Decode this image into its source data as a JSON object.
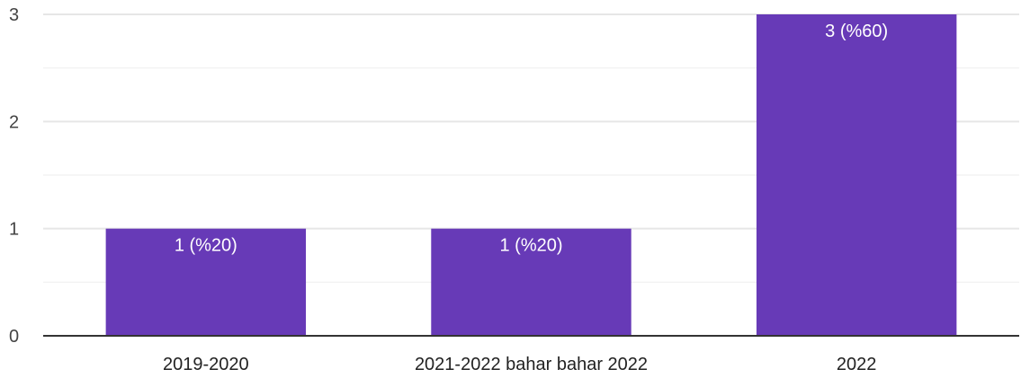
{
  "chart_data": {
    "type": "bar",
    "title": "",
    "xlabel": "",
    "ylabel": "",
    "categories": [
      "2019-2020",
      "2021-2022 bahar bahar 2022",
      "2022"
    ],
    "values": [
      1,
      1,
      3
    ],
    "data_labels": [
      "1 (%20)",
      "1 (%20)",
      "3 (%60)"
    ],
    "ylim": [
      0,
      3
    ],
    "yticks": [
      0,
      1,
      2,
      3
    ],
    "ytick_labels": [
      "0",
      "1",
      "2",
      "3"
    ],
    "grid": true,
    "legend": "none",
    "colors": {
      "bar": "#673ab7",
      "grid_major": "#e6e6e6",
      "grid_minor": "#f3f3f3",
      "axis": "#333333"
    }
  }
}
